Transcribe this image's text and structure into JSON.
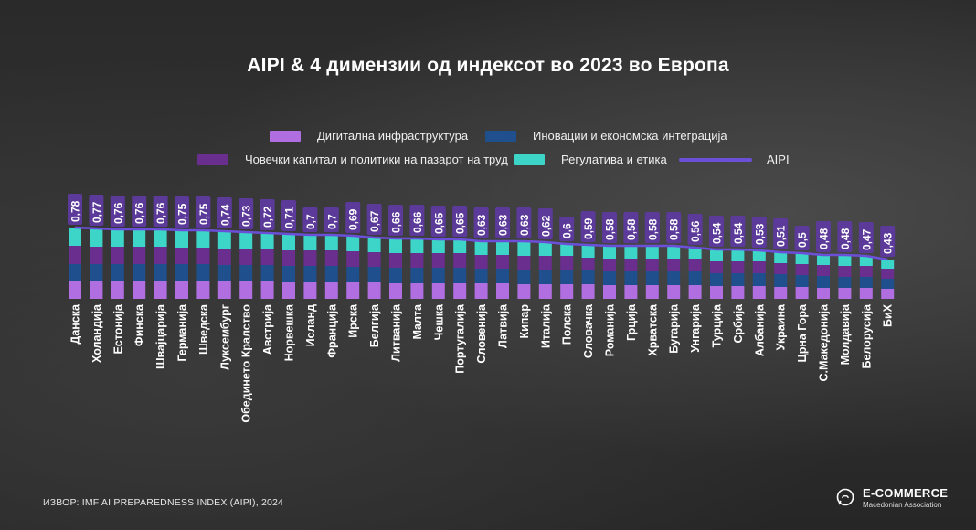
{
  "title": "AIPI & 4 димензии од индексот во 2023 во Европа",
  "legend": {
    "digital": "Дигитална инфраструктура",
    "innovation": "Иновации и економска интеграција",
    "human": "Човечки капитал и политики на пазарот на труд",
    "regulation": "Регулатива и етика",
    "aipi": "AIPI"
  },
  "colors": {
    "digital": "#b06ee0",
    "innovation": "#1f4f8c",
    "human": "#6a2e8e",
    "regulation": "#3ed5c9",
    "aipi": "#6b4fd8",
    "label_bg": "#5b3a9a"
  },
  "source": "ИЗВОР: IMF AI PREPAREDNESS INDEX (AIPI), 2024",
  "logo": {
    "name": "E-COMMERCE",
    "sub": "Macedonian Association"
  },
  "chart_data": {
    "type": "bar",
    "stacked": true,
    "categories": [
      "Данска",
      "Холандија",
      "Естонија",
      "Финска",
      "Швајцарија",
      "Германија",
      "Шведска",
      "Луксембург",
      "Обединето Кралство",
      "Австрија",
      "Норвешка",
      "Исланд",
      "Франција",
      "Ирска",
      "Белгија",
      "Литванија",
      "Малта",
      "Чешка",
      "Португалија",
      "Словенија",
      "Латвија",
      "Кипар",
      "Италија",
      "Полска",
      "Словачка",
      "Романија",
      "Грција",
      "Хрватска",
      "Бугарија",
      "Унгарија",
      "Турција",
      "Србија",
      "Албанија",
      "Украина",
      "Црна Гора",
      "С.Македонија",
      "Молдавија",
      "Белорусија",
      "БиХ"
    ],
    "value_labels": [
      "0,78",
      "0,77",
      "0,76",
      "0,76",
      "0,76",
      "0,75",
      "0,75",
      "0,74",
      "0,73",
      "0,72",
      "0,71",
      "0,7",
      "0,7",
      "0,69",
      "0,67",
      "0,66",
      "0,66",
      "0,65",
      "0,65",
      "0,63",
      "0,63",
      "0,63",
      "0,62",
      "0,6",
      "0,59",
      "0,58",
      "0,58",
      "0,58",
      "0,58",
      "0,56",
      "0,54",
      "0,54",
      "0,53",
      "0,51",
      "0,5",
      "0,48",
      "0,48",
      "0,47",
      "0,43"
    ],
    "series": [
      {
        "name": "Дигитална инфраструктура",
        "values": [
          0.2,
          0.2,
          0.2,
          0.2,
          0.2,
          0.2,
          0.2,
          0.19,
          0.19,
          0.19,
          0.18,
          0.18,
          0.18,
          0.18,
          0.18,
          0.17,
          0.17,
          0.17,
          0.17,
          0.17,
          0.17,
          0.16,
          0.16,
          0.16,
          0.16,
          0.15,
          0.15,
          0.15,
          0.15,
          0.15,
          0.14,
          0.14,
          0.14,
          0.13,
          0.13,
          0.12,
          0.12,
          0.12,
          0.11
        ]
      },
      {
        "name": "Иновации и економска интеграција",
        "values": [
          0.18,
          0.18,
          0.18,
          0.18,
          0.18,
          0.18,
          0.18,
          0.18,
          0.18,
          0.18,
          0.18,
          0.18,
          0.18,
          0.17,
          0.17,
          0.17,
          0.17,
          0.17,
          0.17,
          0.16,
          0.16,
          0.16,
          0.16,
          0.16,
          0.15,
          0.15,
          0.15,
          0.15,
          0.15,
          0.15,
          0.14,
          0.14,
          0.14,
          0.14,
          0.13,
          0.13,
          0.12,
          0.12,
          0.11
        ]
      },
      {
        "name": "Човечки капитал и политики на пазарот на труд",
        "values": [
          0.2,
          0.19,
          0.19,
          0.19,
          0.19,
          0.18,
          0.18,
          0.18,
          0.18,
          0.18,
          0.17,
          0.17,
          0.17,
          0.17,
          0.16,
          0.16,
          0.16,
          0.16,
          0.16,
          0.15,
          0.15,
          0.15,
          0.15,
          0.15,
          0.14,
          0.14,
          0.14,
          0.14,
          0.14,
          0.14,
          0.13,
          0.13,
          0.13,
          0.12,
          0.12,
          0.12,
          0.12,
          0.12,
          0.11
        ]
      },
      {
        "name": "Регулатива и етика",
        "values": [
          0.2,
          0.2,
          0.19,
          0.19,
          0.19,
          0.19,
          0.19,
          0.19,
          0.18,
          0.17,
          0.18,
          0.17,
          0.17,
          0.17,
          0.16,
          0.16,
          0.16,
          0.15,
          0.15,
          0.15,
          0.15,
          0.16,
          0.15,
          0.13,
          0.14,
          0.14,
          0.14,
          0.14,
          0.14,
          0.12,
          0.13,
          0.13,
          0.12,
          0.12,
          0.12,
          0.11,
          0.12,
          0.11,
          0.1
        ]
      }
    ],
    "aipi": [
      0.78,
      0.77,
      0.76,
      0.76,
      0.76,
      0.75,
      0.75,
      0.74,
      0.73,
      0.72,
      0.71,
      0.7,
      0.7,
      0.69,
      0.67,
      0.66,
      0.66,
      0.65,
      0.65,
      0.63,
      0.63,
      0.63,
      0.62,
      0.6,
      0.59,
      0.58,
      0.58,
      0.58,
      0.58,
      0.56,
      0.54,
      0.54,
      0.53,
      0.51,
      0.5,
      0.48,
      0.48,
      0.47,
      0.43
    ],
    "ylim": [
      0,
      0.8
    ]
  }
}
